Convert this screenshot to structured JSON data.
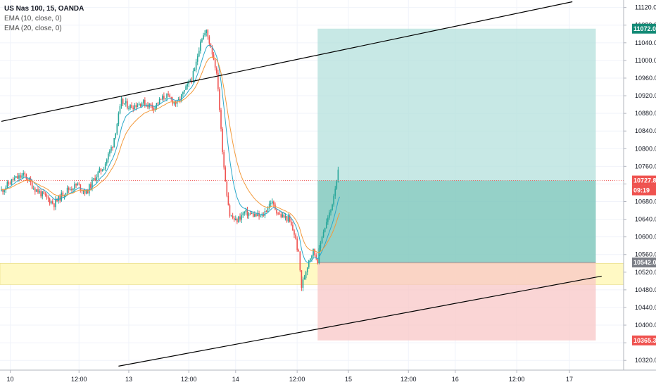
{
  "legend": {
    "symbol": "US Nas 100, 15, OANDA",
    "ema10": "EMA (10, close, 0)",
    "ema20": "EMA (20, close, 0)"
  },
  "chart_data": {
    "type": "candlestick",
    "price_axis": {
      "ticks": [
        11120.0,
        11080.0,
        11040.0,
        11000.0,
        10960.0,
        10920.0,
        10880.0,
        10840.0,
        10800.0,
        10760.0,
        10720.0,
        10680.0,
        10640.0,
        10600.0,
        10560.0,
        10520.0,
        10480.0,
        10440.0,
        10400.0,
        10360.0,
        10320.0
      ],
      "range": [
        10298,
        11137
      ]
    },
    "time_axis": {
      "labels": [
        "10",
        "12:00",
        "13",
        "12:00",
        "14",
        "12:00",
        "15",
        "12:00",
        "16",
        "12:00",
        "17"
      ],
      "bar_index": [
        6,
        53,
        87,
        128,
        160,
        202,
        237,
        278,
        310,
        352,
        388
      ]
    },
    "badges": {
      "target": "11072.0",
      "current": "10727.8",
      "countdown": "09:19",
      "entry": "10542.0",
      "stop": "10365.3"
    },
    "position": {
      "entry": 10542.0,
      "target": 11072.0,
      "stop": 10365.3,
      "start_bar": 216,
      "end_bar": 406,
      "current_price": 10727.8,
      "current_bar": 231
    },
    "support_zone": {
      "top": 10540,
      "bottom": 10492
    },
    "trendlines": [
      {
        "bar1": 0,
        "p1": 10862,
        "bar2": 390,
        "p2": 11133
      },
      {
        "bar1": 80,
        "p1": 10307,
        "bar2": 410,
        "p2": 10511
      }
    ],
    "price_path": [
      [
        0,
        10705
      ],
      [
        8,
        10730
      ],
      [
        16,
        10740
      ],
      [
        22,
        10712
      ],
      [
        30,
        10690
      ],
      [
        36,
        10675
      ],
      [
        44,
        10705
      ],
      [
        52,
        10718
      ],
      [
        58,
        10700
      ],
      [
        64,
        10735
      ],
      [
        70,
        10760
      ],
      [
        76,
        10810
      ],
      [
        82,
        10905
      ],
      [
        88,
        10895
      ],
      [
        96,
        10905
      ],
      [
        104,
        10895
      ],
      [
        112,
        10920
      ],
      [
        120,
        10902
      ],
      [
        126,
        10935
      ],
      [
        132,
        10975
      ],
      [
        136,
        11048
      ],
      [
        140,
        11065
      ],
      [
        143,
        11032
      ],
      [
        146,
        10990
      ],
      [
        148,
        10940
      ],
      [
        150,
        10840
      ],
      [
        152,
        10760
      ],
      [
        154,
        10700
      ],
      [
        156,
        10650
      ],
      [
        160,
        10635
      ],
      [
        166,
        10655
      ],
      [
        172,
        10650
      ],
      [
        178,
        10645
      ],
      [
        184,
        10680
      ],
      [
        190,
        10650
      ],
      [
        196,
        10640
      ],
      [
        200,
        10608
      ],
      [
        203,
        10560
      ],
      [
        205,
        10487
      ],
      [
        207,
        10510
      ],
      [
        210,
        10550
      ],
      [
        213,
        10568
      ],
      [
        216,
        10548
      ],
      [
        219,
        10605
      ],
      [
        222,
        10632
      ],
      [
        225,
        10660
      ],
      [
        228,
        10715
      ],
      [
        230,
        10745
      ],
      [
        231,
        10728
      ]
    ],
    "colors": {
      "up": "#26a69a",
      "down": "#ef5350",
      "ema10": "#2aa8c9",
      "ema20": "#f39a3c",
      "profit_fill": "#b2dfdb",
      "profit_filled": "#6bbdb1",
      "loss_fill": "#f8c5c5",
      "support_fill": "#fff9c4",
      "target_badge": "#138a76",
      "current_badge": "#ef5350",
      "entry_badge": "#7b7e86",
      "stop_badge": "#ef5350",
      "trendline": "#000000",
      "axis_text": "#131722",
      "grid": "#f0f3fa"
    }
  }
}
